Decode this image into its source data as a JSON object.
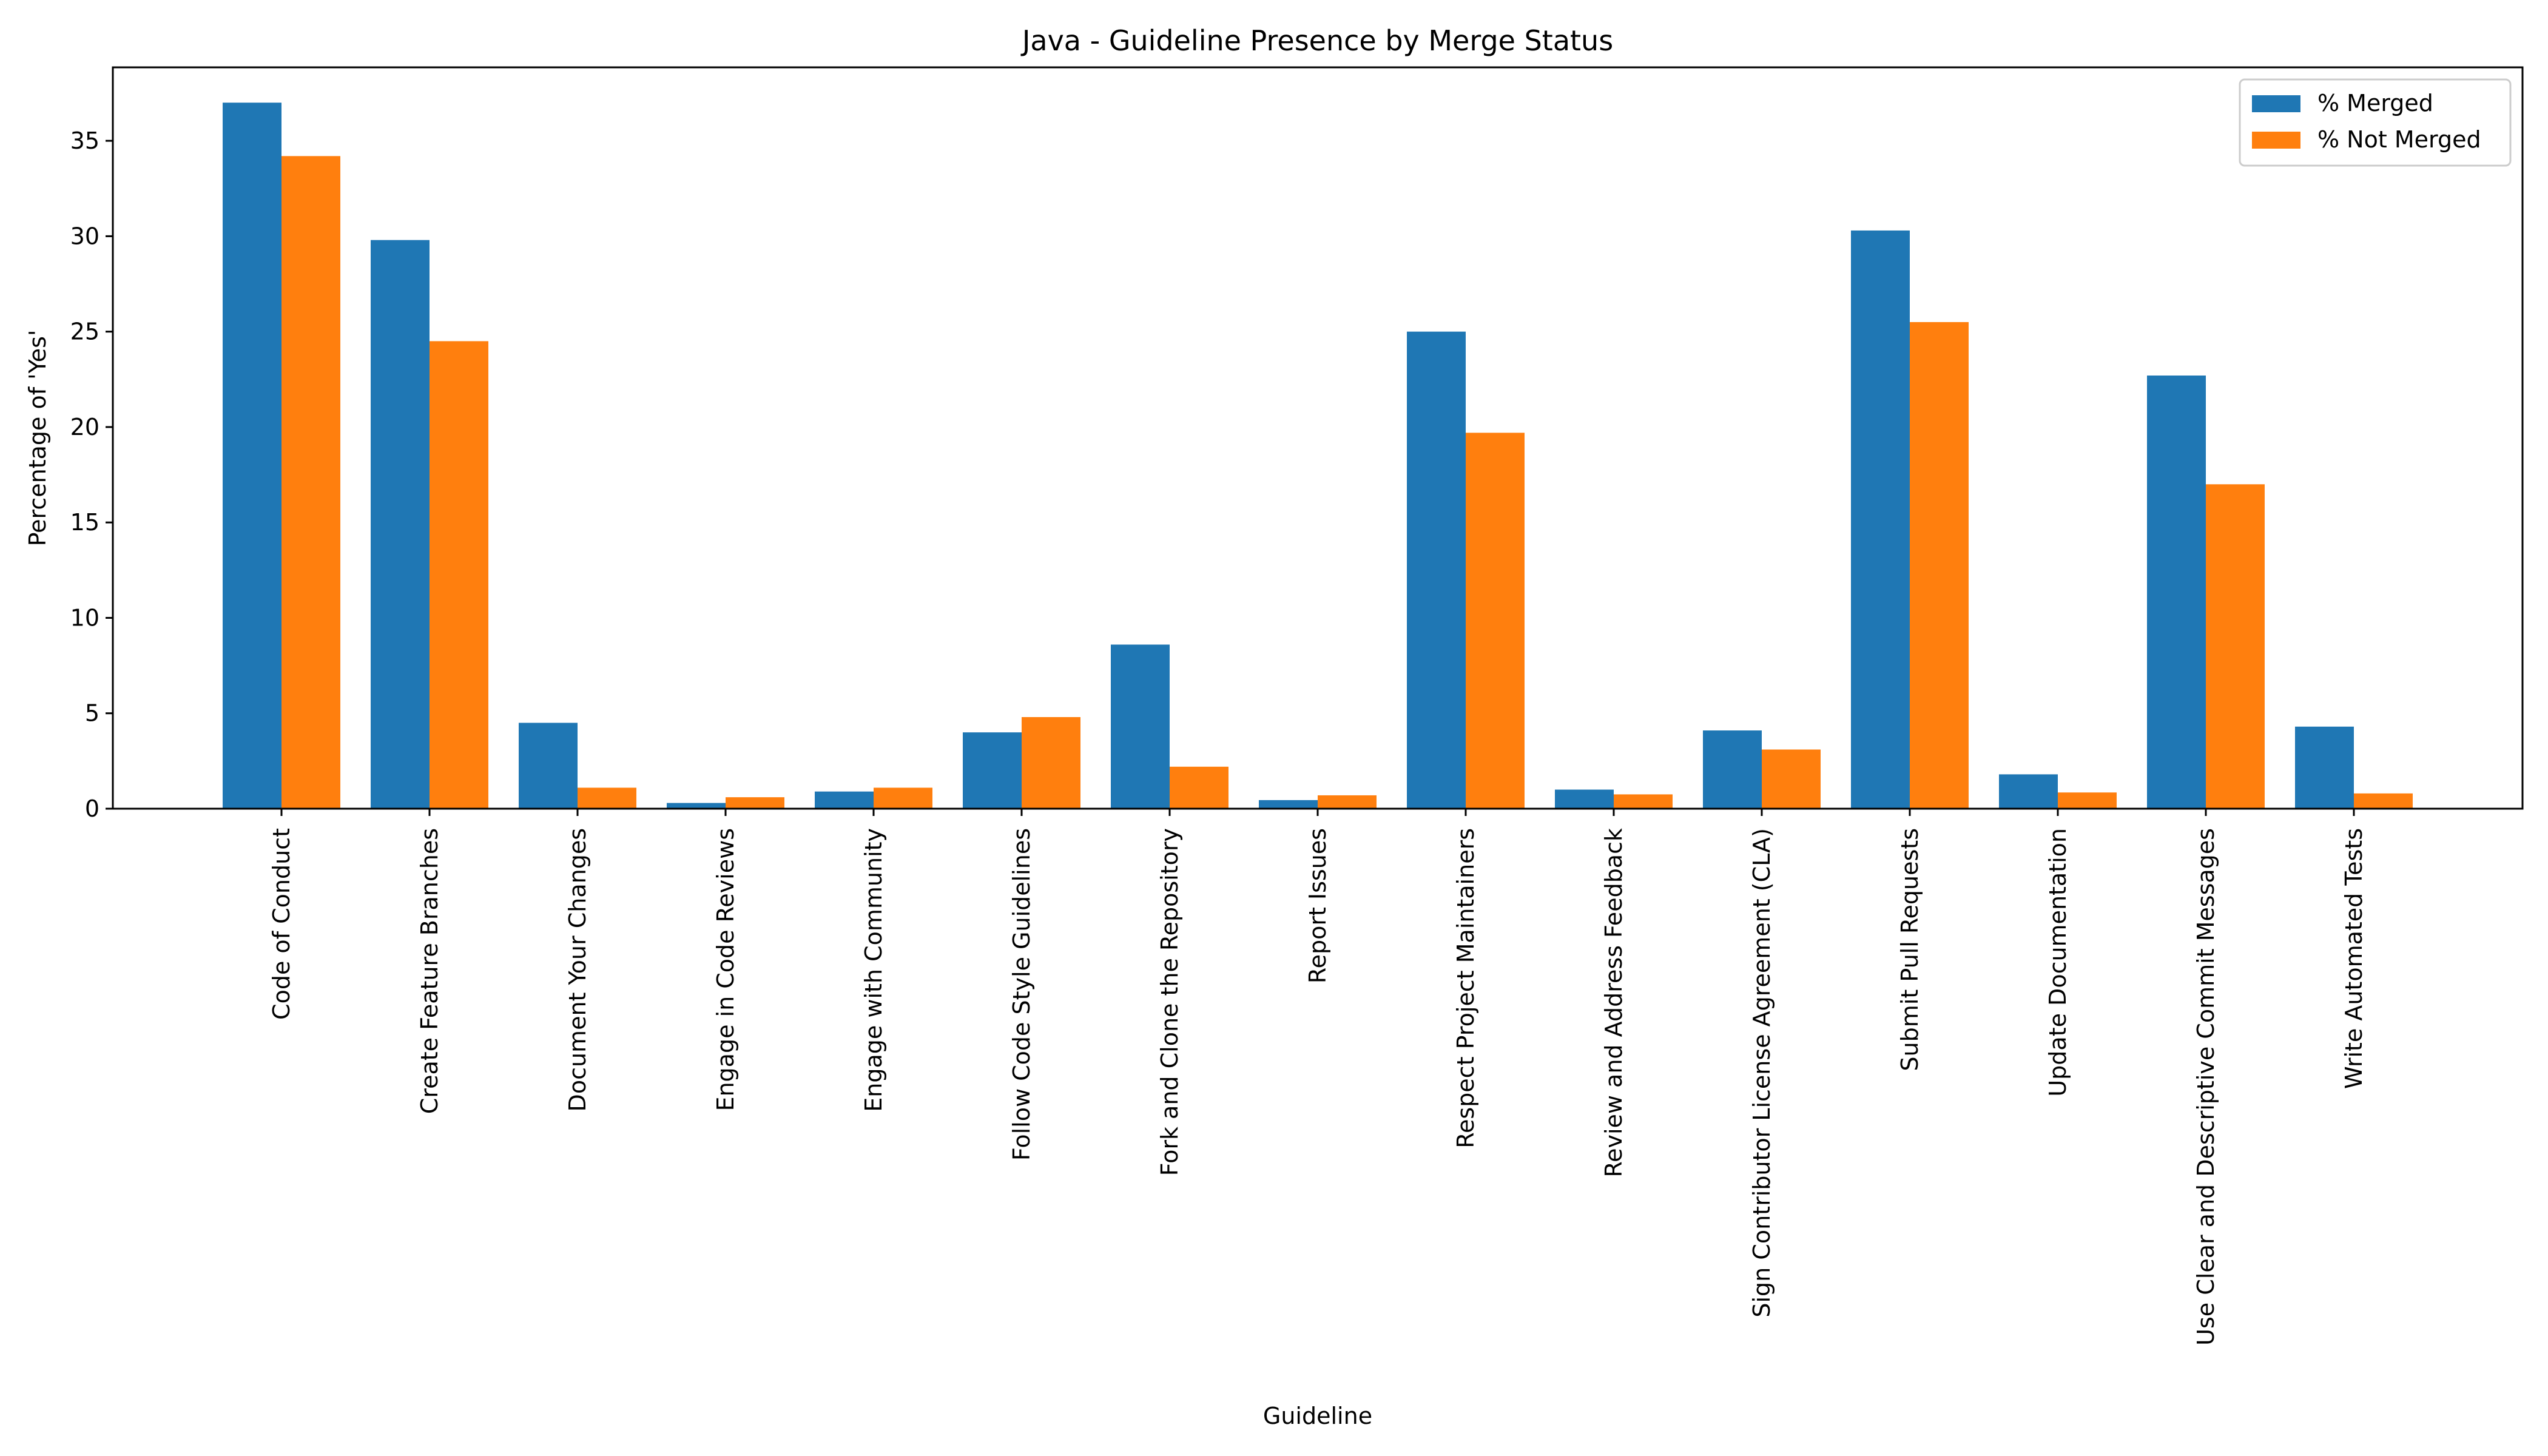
{
  "chart_data": {
    "type": "bar",
    "title": "Java - Guideline Presence by Merge Status",
    "xlabel": "Guideline",
    "ylabel": "Percentage of 'Yes'",
    "ylim": [
      0,
      38.85
    ],
    "yticks": [
      0,
      5,
      10,
      15,
      20,
      25,
      30,
      35
    ],
    "grid": false,
    "legend_position": "top-right",
    "categories": [
      "Code of Conduct",
      "Create Feature Branches",
      "Document Your Changes",
      "Engage in Code Reviews",
      "Engage with Community",
      "Follow Code Style Guidelines",
      "Fork and Clone the Repository",
      "Report Issues",
      "Respect Project Maintainers",
      "Review and Address Feedback",
      "Sign Contributor License Agreement (CLA)",
      "Submit Pull Requests",
      "Update Documentation",
      "Use Clear and Descriptive Commit Messages",
      "Write Automated Tests"
    ],
    "series": [
      {
        "name": "% Merged",
        "color": "#1f77b4",
        "values": [
          37.0,
          29.8,
          4.5,
          0.3,
          0.9,
          4.0,
          8.6,
          0.45,
          25.0,
          1.0,
          4.1,
          30.3,
          1.8,
          22.7,
          4.3
        ]
      },
      {
        "name": "% Not Merged",
        "color": "#ff7f0e",
        "values": [
          34.2,
          24.5,
          1.1,
          0.6,
          1.1,
          4.8,
          2.2,
          0.7,
          19.7,
          0.75,
          3.1,
          25.5,
          0.85,
          17.0,
          0.8
        ]
      }
    ]
  }
}
